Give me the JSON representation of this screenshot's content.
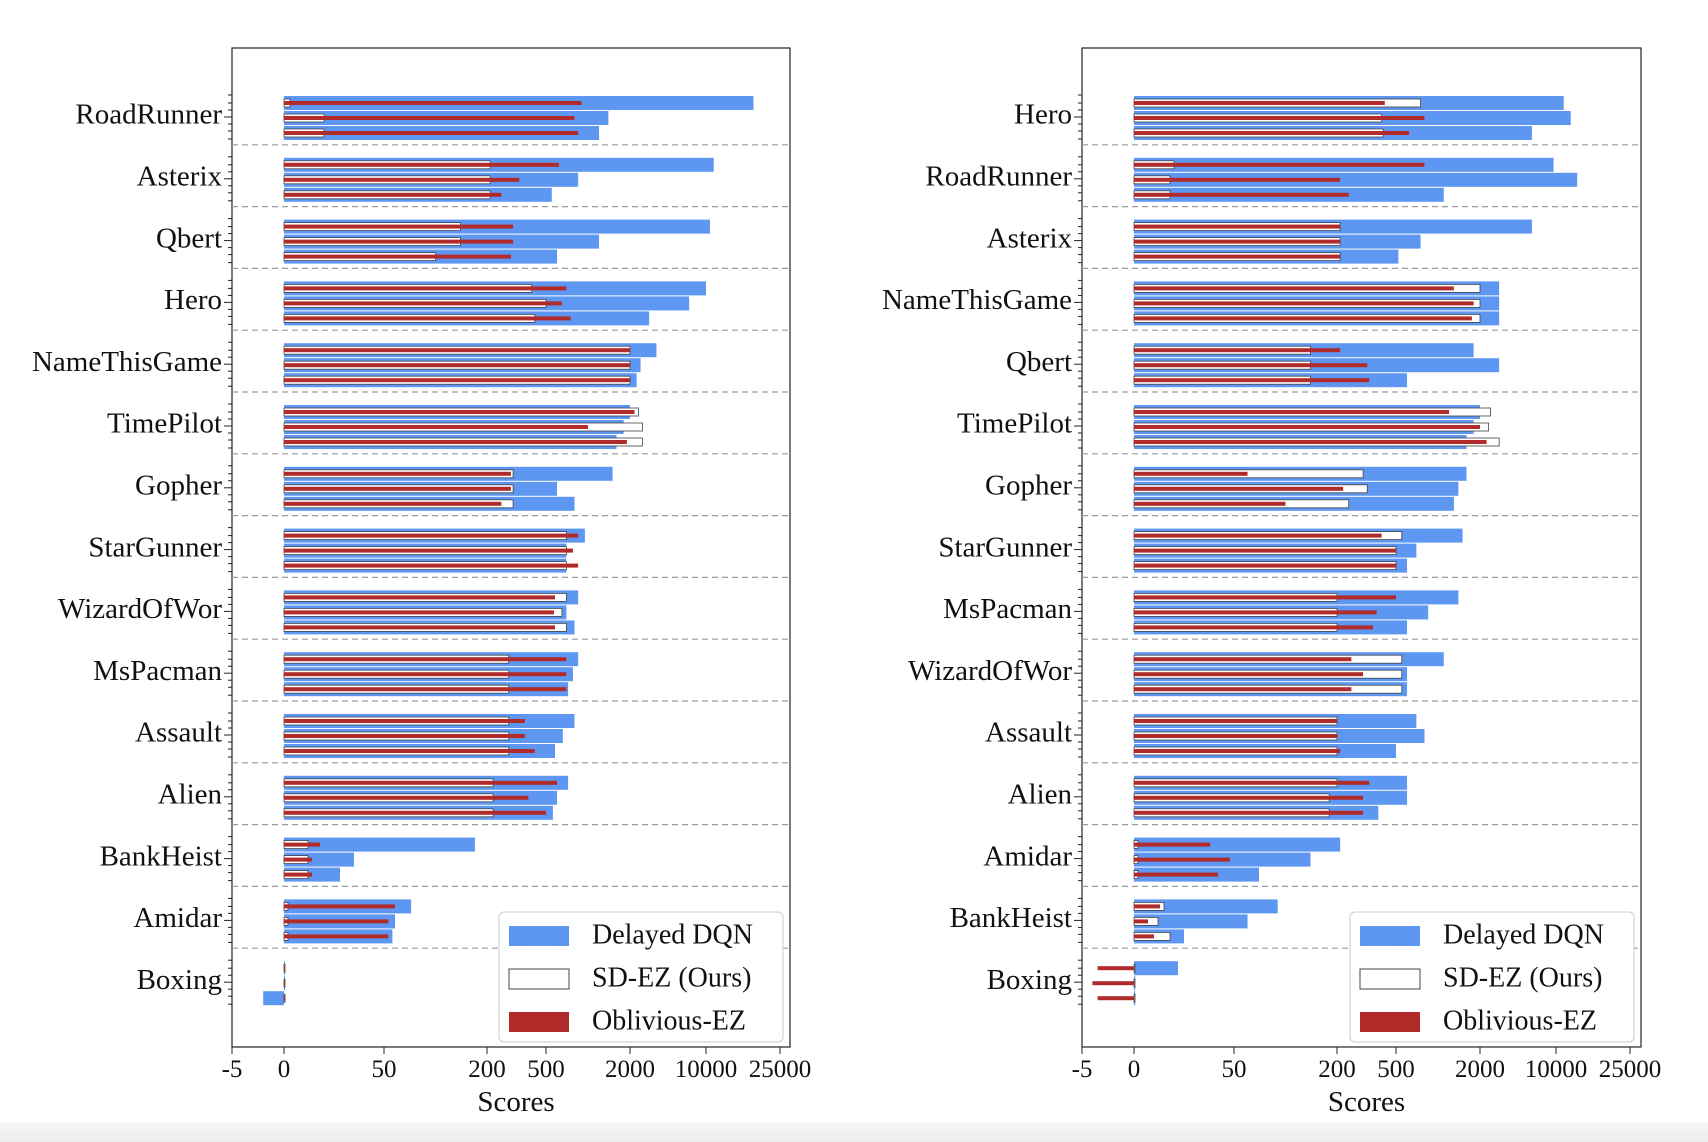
{
  "colors": {
    "delayed": "#5d97f2",
    "oblivious": "#b22b2b",
    "sd_edge": "#444444",
    "separator": "#9a9a9a"
  },
  "legend_labels": [
    "Delayed DQN",
    "SD-EZ (Ours)",
    "Oblivious-EZ"
  ],
  "chart_data": [
    {
      "type": "bar",
      "orientation": "horizontal",
      "xlabel": "Scores",
      "x_ticks": [
        "-5",
        "0",
        "50",
        "200",
        "500",
        "2000",
        "10000",
        "25000"
      ],
      "x_scale": "symlog",
      "xlim": [
        -5,
        25000
      ],
      "legend_placement": "lower-right",
      "grid": false,
      "series": [
        {
          "name": "Delayed DQN",
          "style": "filled-blue"
        },
        {
          "name": "SD-EZ (Ours)",
          "style": "outline"
        },
        {
          "name": "Oblivious-EZ",
          "style": "thin-red"
        }
      ],
      "games": [
        {
          "name": "RoadRunner",
          "delayed": [
            18000,
            1400,
            1200
          ],
          "sd_ez": [
            3,
            20,
            20
          ],
          "oblivious": [
            900,
            800,
            850
          ]
        },
        {
          "name": "Asterix",
          "delayed": [
            11000,
            850,
            550
          ],
          "sd_ez": [
            210,
            210,
            210
          ],
          "oblivious": [
            620,
            330,
            250
          ]
        },
        {
          "name": "Qbert",
          "delayed": [
            10500,
            1200,
            600
          ],
          "sd_ez": [
            140,
            140,
            100
          ],
          "oblivious": [
            300,
            300,
            290
          ]
        },
        {
          "name": "Hero",
          "delayed": [
            10000,
            7000,
            3000
          ],
          "sd_ez": [
            400,
            500,
            420
          ],
          "oblivious": [
            700,
            650,
            750
          ]
        },
        {
          "name": "NameThisGame",
          "delayed": [
            3500,
            2500,
            2300
          ],
          "sd_ez": [
            2000,
            2000,
            2000
          ],
          "oblivious": [
            2000,
            2000,
            2000
          ]
        },
        {
          "name": "TimePilot",
          "delayed": [
            2000,
            1800,
            1600
          ],
          "sd_ez": [
            2400,
            2600,
            2600
          ],
          "oblivious": [
            2200,
            1000,
            1900
          ]
        },
        {
          "name": "Gopher",
          "delayed": [
            1500,
            600,
            800
          ],
          "sd_ez": [
            300,
            300,
            300
          ],
          "oblivious": [
            290,
            290,
            250
          ]
        },
        {
          "name": "StarGunner",
          "delayed": [
            950,
            700,
            700
          ],
          "sd_ez": [
            700,
            700,
            700
          ],
          "oblivious": [
            850,
            780,
            850
          ]
        },
        {
          "name": "WizardOfWor",
          "delayed": [
            850,
            700,
            800
          ],
          "sd_ez": [
            700,
            650,
            700
          ],
          "oblivious": [
            580,
            570,
            580
          ]
        },
        {
          "name": "MsPacman",
          "delayed": [
            850,
            780,
            720
          ],
          "sd_ez": [
            280,
            280,
            280
          ],
          "oblivious": [
            700,
            700,
            700
          ]
        },
        {
          "name": "Assault",
          "delayed": [
            800,
            660,
            580
          ],
          "sd_ez": [
            280,
            280,
            280
          ],
          "oblivious": [
            360,
            360,
            420
          ]
        },
        {
          "name": "Alien",
          "delayed": [
            720,
            600,
            560
          ],
          "sd_ez": [
            220,
            220,
            220
          ],
          "oblivious": [
            600,
            380,
            500
          ]
        },
        {
          "name": "BankHeist",
          "delayed": [
            170,
            35,
            28
          ],
          "sd_ez": [
            12,
            12,
            12
          ],
          "oblivious": [
            18,
            14,
            14
          ]
        },
        {
          "name": "Amidar",
          "delayed": [
            72,
            58,
            56
          ],
          "sd_ez": [
            2,
            2,
            2
          ],
          "oblivious": [
            58,
            53,
            53
          ]
        },
        {
          "name": "Boxing",
          "delayed": [
            0,
            0,
            -2
          ],
          "sd_ez": [
            0.5,
            0.5,
            0.5
          ],
          "oblivious": [
            0.4,
            0.3,
            0.6
          ]
        }
      ]
    },
    {
      "type": "bar",
      "orientation": "horizontal",
      "xlabel": "Scores",
      "x_ticks": [
        "-5",
        "0",
        "50",
        "200",
        "500",
        "2000",
        "10000",
        "25000"
      ],
      "x_scale": "symlog",
      "xlim": [
        -5,
        25000
      ],
      "legend_placement": "lower-right",
      "grid": false,
      "series": [
        {
          "name": "Delayed DQN",
          "style": "filled-blue"
        },
        {
          "name": "SD-EZ (Ours)",
          "style": "outline"
        },
        {
          "name": "Oblivious-EZ",
          "style": "thin-red"
        }
      ],
      "games": [
        {
          "name": "Hero",
          "delayed": [
            11000,
            12000,
            6000
          ],
          "sd_ez": [
            750,
            400,
            410
          ],
          "oblivious": [
            420,
            800,
            620
          ]
        },
        {
          "name": "RoadRunner",
          "delayed": [
            9500,
            13000,
            1100
          ],
          "sd_ez": [
            20,
            18,
            18
          ],
          "oblivious": [
            800,
            210,
            240
          ]
        },
        {
          "name": "Asterix",
          "delayed": [
            6000,
            750,
            520
          ],
          "sd_ez": [
            210,
            210,
            210
          ],
          "oblivious": [
            210,
            210,
            210
          ]
        },
        {
          "name": "NameThisGame",
          "delayed": [
            3000,
            3000,
            3000
          ],
          "sd_ez": [
            2000,
            2000,
            2000
          ],
          "oblivious": [
            1300,
            1800,
            1750
          ]
        },
        {
          "name": "Qbert",
          "delayed": [
            1800,
            3000,
            600
          ],
          "sd_ez": [
            140,
            140,
            140
          ],
          "oblivious": [
            210,
            320,
            330
          ]
        },
        {
          "name": "TimePilot",
          "delayed": [
            2000,
            1800,
            1600
          ],
          "sd_ez": [
            2500,
            2400,
            3000
          ],
          "oblivious": [
            1200,
            2000,
            2300
          ]
        },
        {
          "name": "Gopher",
          "delayed": [
            1600,
            1400,
            1300
          ],
          "sd_ez": [
            300,
            320,
            240
          ],
          "oblivious": [
            60,
            220,
            100
          ]
        },
        {
          "name": "StarGunner",
          "delayed": [
            1500,
            700,
            600
          ],
          "sd_ez": [
            550,
            500,
            500
          ],
          "oblivious": [
            400,
            500,
            500
          ]
        },
        {
          "name": "MsPacman",
          "delayed": [
            1400,
            850,
            600
          ],
          "sd_ez": [
            200,
            200,
            200
          ],
          "oblivious": [
            500,
            370,
            350
          ]
        },
        {
          "name": "WizardOfWor",
          "delayed": [
            1100,
            600,
            600
          ],
          "sd_ez": [
            550,
            550,
            550
          ],
          "oblivious": [
            250,
            300,
            250
          ]
        },
        {
          "name": "Assault",
          "delayed": [
            700,
            800,
            500
          ],
          "sd_ez": [
            200,
            200,
            200
          ],
          "oblivious": [
            200,
            200,
            210
          ]
        },
        {
          "name": "Alien",
          "delayed": [
            600,
            600,
            380
          ],
          "sd_ez": [
            200,
            180,
            180
          ],
          "oblivious": [
            330,
            300,
            300
          ]
        },
        {
          "name": "Amidar",
          "delayed": [
            210,
            140,
            70
          ],
          "sd_ez": [
            2,
            2,
            2
          ],
          "oblivious": [
            38,
            48,
            42
          ]
        },
        {
          "name": "BankHeist",
          "delayed": [
            90,
            60,
            25
          ],
          "sd_ez": [
            15,
            12,
            18
          ],
          "oblivious": [
            13,
            7,
            10
          ]
        },
        {
          "name": "Boxing",
          "delayed": [
            22,
            0.6,
            0.6
          ],
          "sd_ez": [
            0,
            0,
            0
          ],
          "oblivious": [
            -3.5,
            -4,
            -3.5
          ]
        }
      ]
    }
  ]
}
